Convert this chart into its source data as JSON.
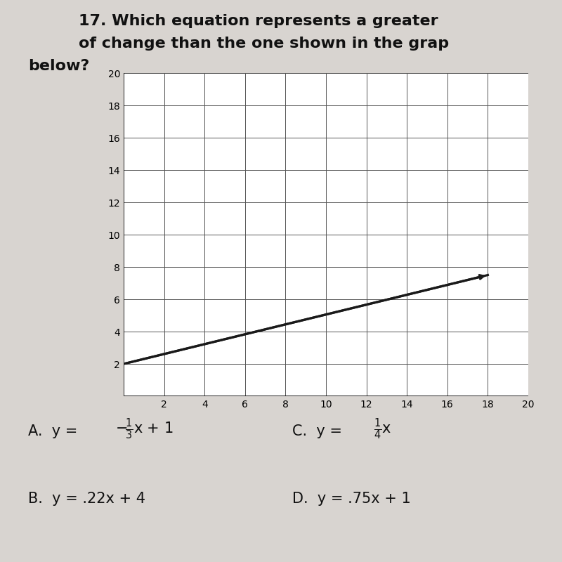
{
  "background_color": "#d8d4d0",
  "graph_background": "#ffffff",
  "grid_color": "#555555",
  "line_color": "#1a1a1a",
  "line_x": [
    0,
    18
  ],
  "line_y": [
    2,
    7.5
  ],
  "xlim": [
    0,
    20
  ],
  "ylim": [
    0,
    20
  ],
  "xticks": [
    2,
    4,
    6,
    8,
    10,
    12,
    14,
    16,
    18,
    20
  ],
  "yticks": [
    2,
    4,
    6,
    8,
    10,
    12,
    14,
    16,
    18,
    20
  ],
  "tick_fontsize": 10,
  "title_lines": [
    "17. Which equation represents a greater",
    "of change than the one shown in the grap",
    "below?"
  ],
  "title_fontsize": 16,
  "answer_fontsize": 15
}
